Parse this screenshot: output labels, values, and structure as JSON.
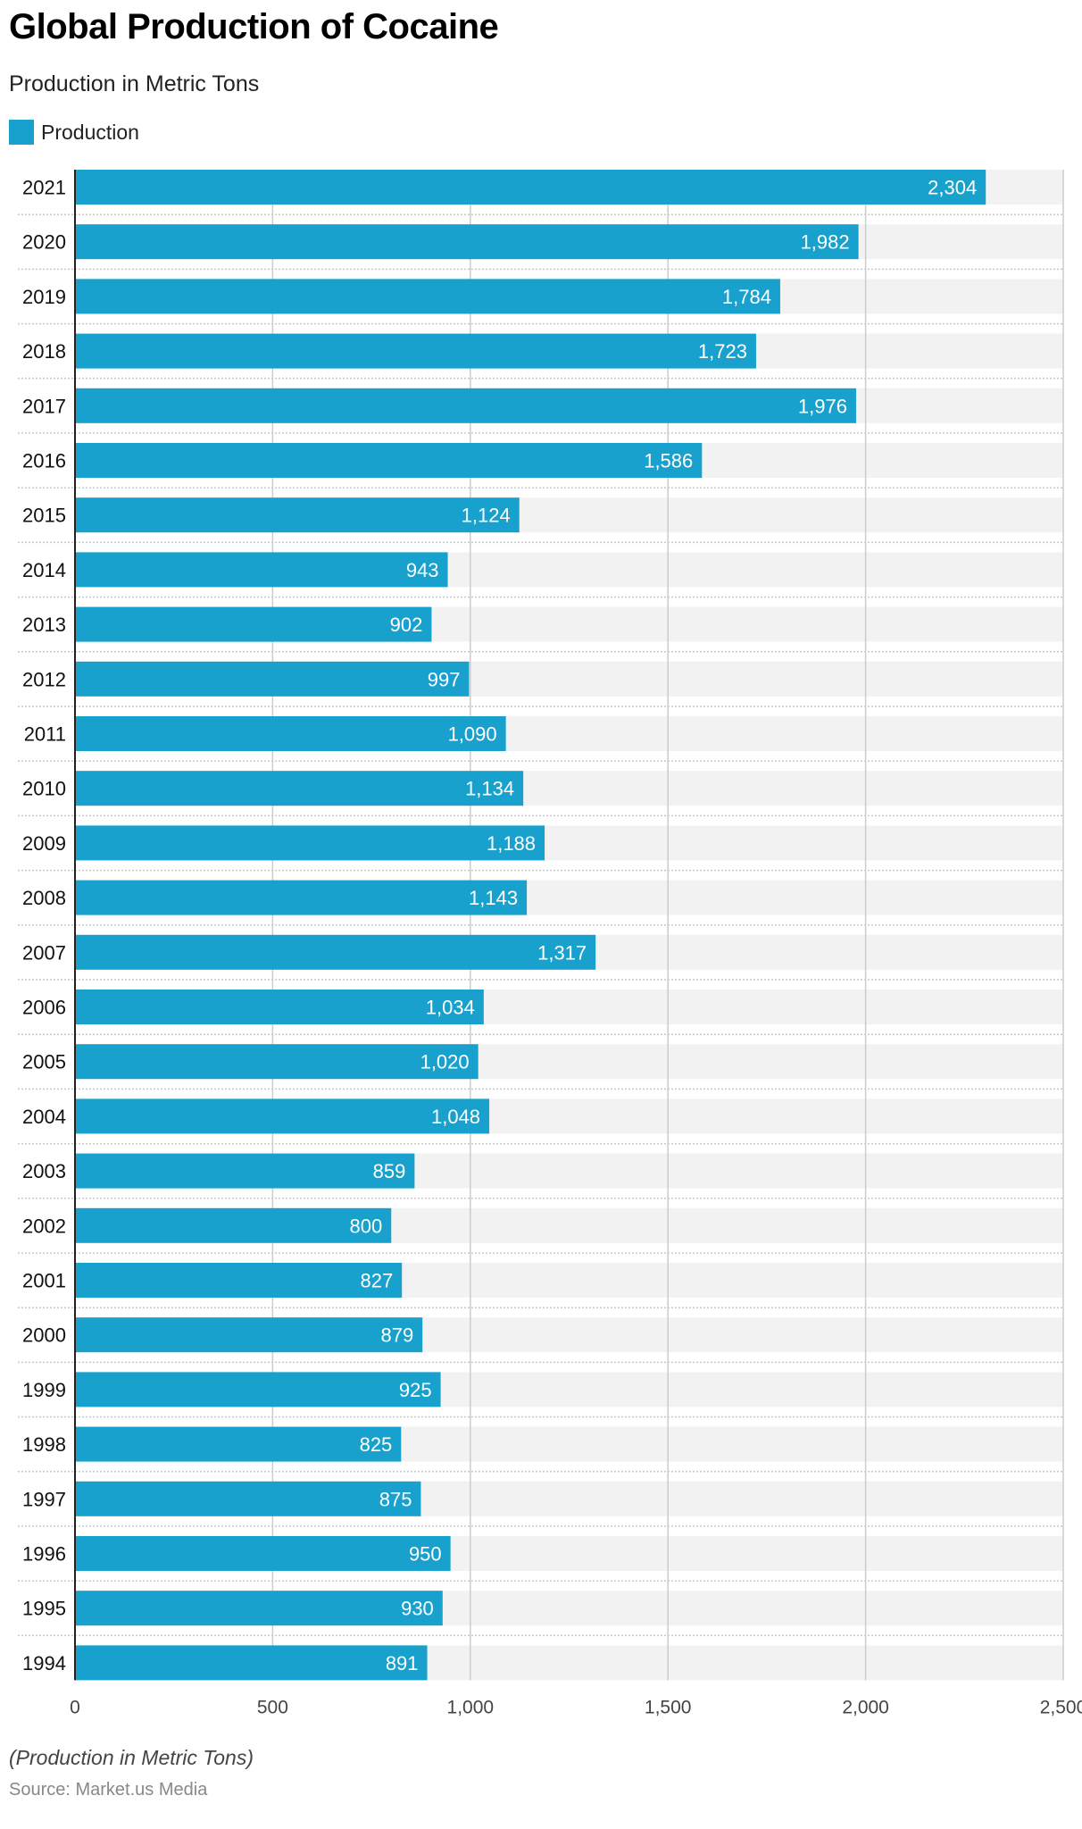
{
  "chart_data": {
    "type": "bar",
    "orientation": "horizontal",
    "title": "Global Production of Cocaine",
    "subtitle": "Production in Metric Tons",
    "categories": [
      "2021",
      "2020",
      "2019",
      "2018",
      "2017",
      "2016",
      "2015",
      "2014",
      "2013",
      "2012",
      "2011",
      "2010",
      "2009",
      "2008",
      "2007",
      "2006",
      "2005",
      "2004",
      "2003",
      "2002",
      "2001",
      "2000",
      "1999",
      "1998",
      "1997",
      "1996",
      "1995",
      "1994"
    ],
    "series": [
      {
        "name": "Production",
        "color": "#19a1cd",
        "values": [
          2304,
          1982,
          1784,
          1723,
          1976,
          1586,
          1124,
          943,
          902,
          997,
          1090,
          1134,
          1188,
          1143,
          1317,
          1034,
          1020,
          1048,
          859,
          800,
          827,
          879,
          925,
          825,
          875,
          950,
          930,
          891
        ]
      }
    ],
    "xlim": [
      0,
      2500
    ],
    "xticks": [
      "0",
      "500",
      "1,000",
      "1,500",
      "2,000",
      "2,500"
    ],
    "grid": true,
    "legend": "top-left",
    "footnote": "(Production in Metric Tons)",
    "source": "Source: Market.us Media"
  }
}
